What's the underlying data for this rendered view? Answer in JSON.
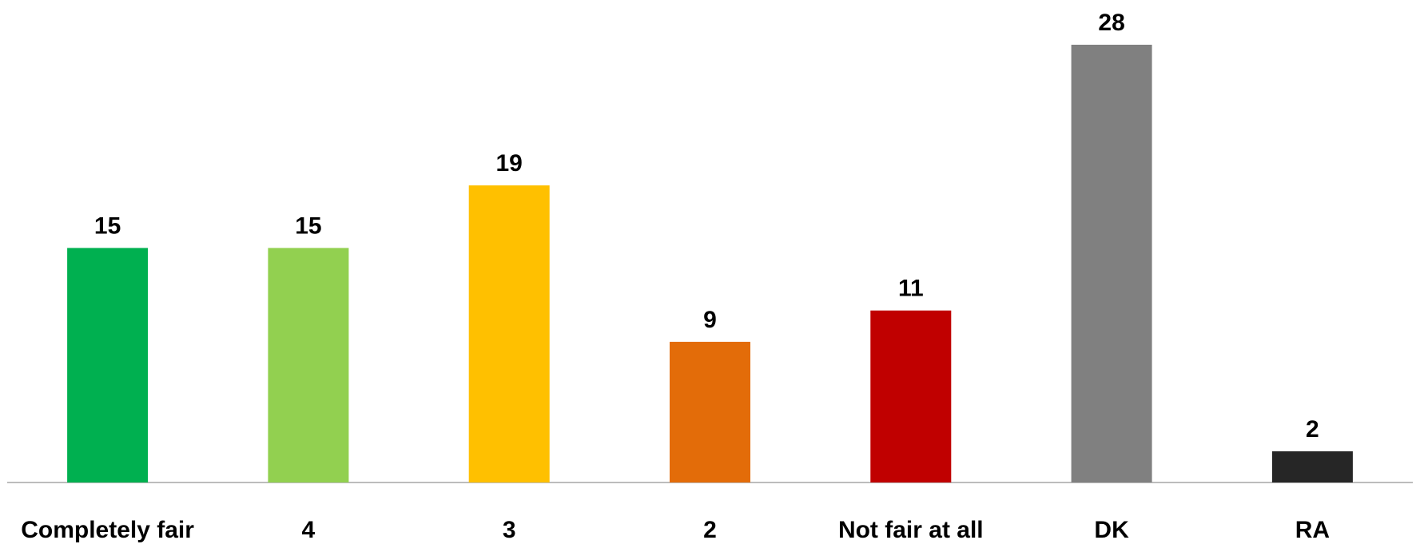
{
  "chart_data": {
    "type": "bar",
    "categories": [
      "Completely fair",
      "4",
      "3",
      "2",
      "Not fair at all",
      "DK",
      "RA"
    ],
    "values": [
      15,
      15,
      19,
      9,
      11,
      28,
      2
    ],
    "colors": [
      "#00B050",
      "#92D050",
      "#FFC000",
      "#E36C09",
      "#C00000",
      "#808080",
      "#262626"
    ],
    "data_labels": [
      "15",
      "15",
      "19",
      "9",
      "11",
      "28",
      "2"
    ],
    "title": "",
    "xlabel": "",
    "ylabel": "",
    "ylim": [
      0,
      28
    ],
    "grid": false,
    "legend": "none"
  }
}
